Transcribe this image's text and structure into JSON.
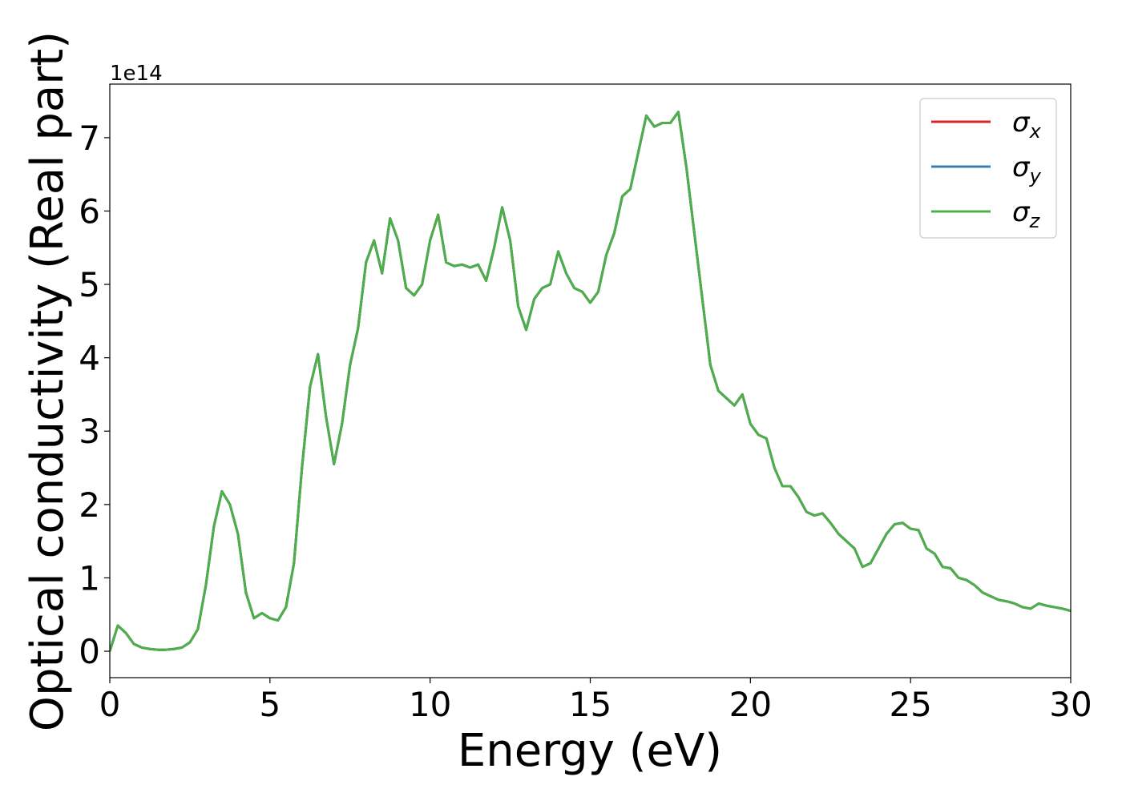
{
  "chart_data": {
    "type": "line",
    "xlabel": "Energy (eV)",
    "ylabel": "Optical conductivity (Real part)",
    "y_offset_label": "1e14",
    "x": [
      0,
      0.25,
      0.5,
      0.75,
      1,
      1.25,
      1.5,
      1.75,
      2,
      2.25,
      2.5,
      2.75,
      3,
      3.25,
      3.5,
      3.75,
      4,
      4.25,
      4.5,
      4.75,
      5,
      5.25,
      5.5,
      5.75,
      6,
      6.25,
      6.5,
      6.75,
      7,
      7.25,
      7.5,
      7.75,
      8,
      8.25,
      8.5,
      8.75,
      9,
      9.25,
      9.5,
      9.75,
      10,
      10.25,
      10.5,
      10.75,
      11,
      11.25,
      11.5,
      11.75,
      12,
      12.25,
      12.5,
      12.75,
      13,
      13.25,
      13.5,
      13.75,
      14,
      14.25,
      14.5,
      14.75,
      15,
      15.25,
      15.5,
      15.75,
      16,
      16.25,
      16.5,
      16.75,
      17,
      17.25,
      17.5,
      17.75,
      18,
      18.25,
      18.5,
      18.75,
      19,
      19.25,
      19.5,
      19.75,
      20,
      20.25,
      20.5,
      20.75,
      21,
      21.25,
      21.5,
      21.75,
      22,
      22.25,
      22.5,
      22.75,
      23,
      23.25,
      23.5,
      23.75,
      24,
      24.25,
      24.5,
      24.75,
      25,
      25.25,
      25.5,
      25.75,
      26,
      26.25,
      26.5,
      26.75,
      27,
      27.25,
      27.5,
      27.75,
      28,
      28.25,
      28.5,
      28.75,
      29,
      29.25,
      29.5,
      29.75,
      30
    ],
    "series": [
      {
        "name": "σx",
        "color": "#d62728",
        "values": [
          0,
          0.35,
          0.25,
          0.1,
          0.05,
          0.03,
          0.02,
          0.02,
          0.03,
          0.05,
          0.12,
          0.3,
          0.9,
          1.7,
          2.18,
          2.0,
          1.6,
          0.8,
          0.45,
          0.52,
          0.45,
          0.42,
          0.6,
          1.2,
          2.5,
          3.6,
          4.05,
          3.2,
          2.55,
          3.1,
          3.9,
          4.4,
          5.3,
          5.6,
          5.15,
          5.9,
          5.6,
          4.95,
          4.85,
          5.0,
          5.6,
          5.95,
          5.3,
          5.25,
          5.27,
          5.23,
          5.27,
          5.05,
          5.5,
          6.05,
          5.6,
          4.7,
          4.38,
          4.8,
          4.95,
          5.0,
          5.45,
          5.15,
          4.95,
          4.9,
          4.75,
          4.9,
          5.4,
          5.7,
          6.2,
          6.3,
          6.8,
          7.3,
          7.15,
          7.2,
          7.2,
          7.35,
          6.6,
          5.7,
          4.8,
          3.9,
          3.55,
          3.45,
          3.35,
          3.5,
          3.1,
          2.95,
          2.9,
          2.5,
          2.25,
          2.25,
          2.1,
          1.9,
          1.85,
          1.88,
          1.75,
          1.6,
          1.5,
          1.4,
          1.15,
          1.2,
          1.4,
          1.6,
          1.73,
          1.75,
          1.67,
          1.65,
          1.4,
          1.33,
          1.15,
          1.13,
          1.0,
          0.97,
          0.9,
          0.8,
          0.75,
          0.7,
          0.68,
          0.65,
          0.6,
          0.58,
          0.65,
          0.62,
          0.6,
          0.58,
          0.55
        ]
      },
      {
        "name": "σy",
        "color": "#377eb8",
        "values": [
          0,
          0.35,
          0.25,
          0.1,
          0.05,
          0.03,
          0.02,
          0.02,
          0.03,
          0.05,
          0.12,
          0.3,
          0.9,
          1.7,
          2.18,
          2.0,
          1.6,
          0.8,
          0.45,
          0.52,
          0.45,
          0.42,
          0.6,
          1.2,
          2.5,
          3.6,
          4.05,
          3.2,
          2.55,
          3.1,
          3.9,
          4.4,
          5.3,
          5.6,
          5.15,
          5.9,
          5.6,
          4.95,
          4.85,
          5.0,
          5.6,
          5.95,
          5.3,
          5.25,
          5.27,
          5.23,
          5.27,
          5.05,
          5.5,
          6.05,
          5.6,
          4.7,
          4.38,
          4.8,
          4.95,
          5.0,
          5.45,
          5.15,
          4.95,
          4.9,
          4.75,
          4.9,
          5.4,
          5.7,
          6.2,
          6.3,
          6.8,
          7.3,
          7.15,
          7.2,
          7.2,
          7.35,
          6.6,
          5.7,
          4.8,
          3.9,
          3.55,
          3.45,
          3.35,
          3.5,
          3.1,
          2.95,
          2.9,
          2.5,
          2.25,
          2.25,
          2.1,
          1.9,
          1.85,
          1.88,
          1.75,
          1.6,
          1.5,
          1.4,
          1.15,
          1.2,
          1.4,
          1.6,
          1.73,
          1.75,
          1.67,
          1.65,
          1.4,
          1.33,
          1.15,
          1.13,
          1.0,
          0.97,
          0.9,
          0.8,
          0.75,
          0.7,
          0.68,
          0.65,
          0.6,
          0.58,
          0.65,
          0.62,
          0.6,
          0.58,
          0.55
        ]
      },
      {
        "name": "σz",
        "color": "#4daf4a",
        "values": [
          0,
          0.35,
          0.25,
          0.1,
          0.05,
          0.03,
          0.02,
          0.02,
          0.03,
          0.05,
          0.12,
          0.3,
          0.9,
          1.7,
          2.18,
          2.0,
          1.6,
          0.8,
          0.45,
          0.52,
          0.45,
          0.42,
          0.6,
          1.2,
          2.5,
          3.6,
          4.05,
          3.2,
          2.55,
          3.1,
          3.9,
          4.4,
          5.3,
          5.6,
          5.15,
          5.9,
          5.6,
          4.95,
          4.85,
          5.0,
          5.6,
          5.95,
          5.3,
          5.25,
          5.27,
          5.23,
          5.27,
          5.05,
          5.5,
          6.05,
          5.6,
          4.7,
          4.38,
          4.8,
          4.95,
          5.0,
          5.45,
          5.15,
          4.95,
          4.9,
          4.75,
          4.9,
          5.4,
          5.7,
          6.2,
          6.3,
          6.8,
          7.3,
          7.15,
          7.2,
          7.2,
          7.35,
          6.6,
          5.7,
          4.8,
          3.9,
          3.55,
          3.45,
          3.35,
          3.5,
          3.1,
          2.95,
          2.9,
          2.5,
          2.25,
          2.25,
          2.1,
          1.9,
          1.85,
          1.88,
          1.75,
          1.6,
          1.5,
          1.4,
          1.15,
          1.2,
          1.4,
          1.6,
          1.73,
          1.75,
          1.67,
          1.65,
          1.4,
          1.33,
          1.15,
          1.13,
          1.0,
          0.97,
          0.9,
          0.8,
          0.75,
          0.7,
          0.68,
          0.65,
          0.6,
          0.58,
          0.65,
          0.62,
          0.6,
          0.58,
          0.55
        ]
      }
    ],
    "xlim": [
      0,
      30
    ],
    "xticks": [
      0,
      5,
      10,
      15,
      20,
      25,
      30
    ],
    "ylim": [
      -0.36,
      7.73
    ],
    "yticks": [
      0,
      1,
      2,
      3,
      4,
      5,
      6,
      7
    ],
    "grid": false,
    "legend": "upper right"
  }
}
